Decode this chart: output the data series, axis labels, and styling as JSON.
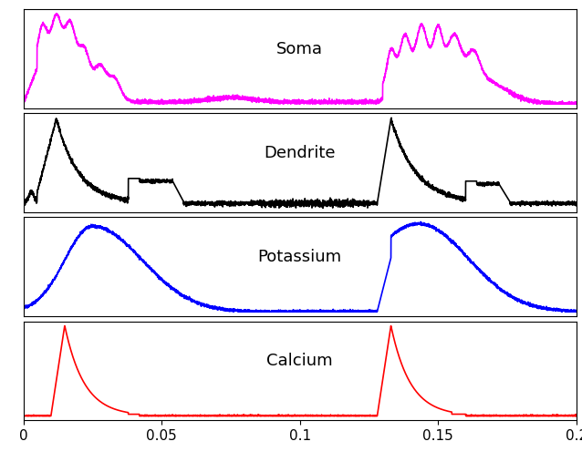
{
  "panels": [
    "Soma",
    "Dendrite",
    "Potassium",
    "Calcium"
  ],
  "colors": [
    "magenta",
    "black",
    "blue",
    "red"
  ],
  "xlim": [
    0,
    0.2
  ],
  "xticks": [
    0,
    0.05,
    0.1,
    0.15,
    0.2
  ],
  "xticklabels": [
    "0",
    "0.05",
    "0.1",
    "0.15",
    "0.2"
  ],
  "background_color": "white",
  "figsize": [
    6.38,
    5.07
  ],
  "dpi": 100
}
